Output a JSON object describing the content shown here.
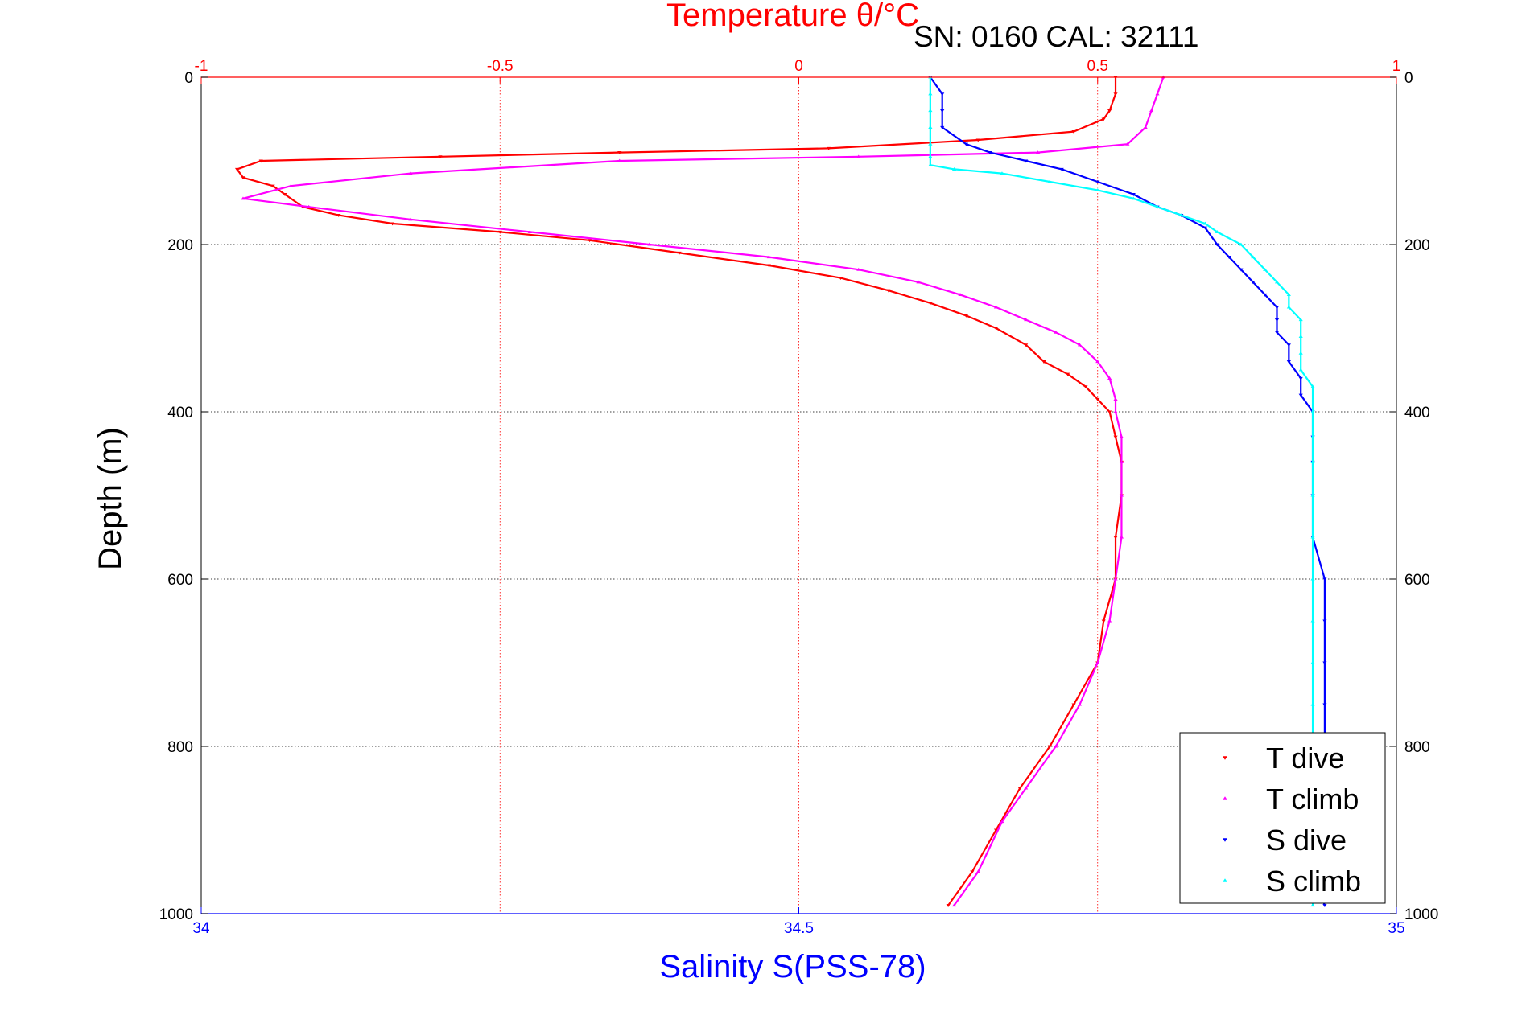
{
  "chart_data": {
    "type": "scatter",
    "title_top": "Temperature θ/°C",
    "annotation": "SN: 0160  CAL: 32111",
    "xlabel_bottom": "Salinity S(PSS-78)",
    "ylabel": "Depth (m)",
    "x_top": {
      "range": [
        -1,
        1
      ],
      "ticks": [
        "-1",
        "-0.5",
        "0",
        "0.5",
        "1"
      ],
      "color": "#ff0000"
    },
    "x_bottom": {
      "range": [
        34,
        35
      ],
      "ticks": [
        "34",
        "34.5",
        "35"
      ],
      "color": "#0000ff"
    },
    "y": {
      "range": [
        0,
        1000
      ],
      "reversed": true,
      "ticks": [
        "0",
        "200",
        "400",
        "600",
        "800",
        "1000"
      ]
    },
    "grid": true,
    "legend": {
      "placement": "bottom-right"
    },
    "series": [
      {
        "name": "T dive",
        "axis": "temperature",
        "color": "#ff0000",
        "marker": "triangle-down",
        "points": [
          [
            0.53,
            0
          ],
          [
            0.53,
            20
          ],
          [
            0.52,
            40
          ],
          [
            0.51,
            50
          ],
          [
            0.46,
            65
          ],
          [
            0.3,
            75
          ],
          [
            0.05,
            85
          ],
          [
            -0.3,
            90
          ],
          [
            -0.6,
            95
          ],
          [
            -0.9,
            100
          ],
          [
            -0.94,
            110
          ],
          [
            -0.93,
            120
          ],
          [
            -0.88,
            130
          ],
          [
            -0.86,
            140
          ],
          [
            -0.83,
            155
          ],
          [
            -0.77,
            165
          ],
          [
            -0.68,
            175
          ],
          [
            -0.5,
            185
          ],
          [
            -0.35,
            195
          ],
          [
            -0.2,
            210
          ],
          [
            -0.05,
            225
          ],
          [
            0.07,
            240
          ],
          [
            0.15,
            255
          ],
          [
            0.22,
            270
          ],
          [
            0.28,
            285
          ],
          [
            0.33,
            300
          ],
          [
            0.38,
            320
          ],
          [
            0.41,
            340
          ],
          [
            0.45,
            355
          ],
          [
            0.48,
            370
          ],
          [
            0.5,
            385
          ],
          [
            0.52,
            400
          ],
          [
            0.53,
            430
          ],
          [
            0.54,
            460
          ],
          [
            0.54,
            500
          ],
          [
            0.53,
            550
          ],
          [
            0.53,
            600
          ],
          [
            0.51,
            650
          ],
          [
            0.5,
            700
          ],
          [
            0.46,
            750
          ],
          [
            0.42,
            800
          ],
          [
            0.37,
            850
          ],
          [
            0.33,
            900
          ],
          [
            0.29,
            950
          ],
          [
            0.25,
            990
          ]
        ]
      },
      {
        "name": "T climb",
        "axis": "temperature",
        "color": "#ff00ff",
        "marker": "triangle-up",
        "points": [
          [
            0.61,
            0
          ],
          [
            0.6,
            20
          ],
          [
            0.59,
            40
          ],
          [
            0.58,
            60
          ],
          [
            0.55,
            80
          ],
          [
            0.4,
            90
          ],
          [
            0.1,
            95
          ],
          [
            -0.3,
            100
          ],
          [
            -0.65,
            115
          ],
          [
            -0.85,
            130
          ],
          [
            -0.93,
            145
          ],
          [
            -0.82,
            155
          ],
          [
            -0.65,
            170
          ],
          [
            -0.45,
            185
          ],
          [
            -0.25,
            200
          ],
          [
            -0.05,
            215
          ],
          [
            0.1,
            230
          ],
          [
            0.2,
            245
          ],
          [
            0.27,
            260
          ],
          [
            0.33,
            275
          ],
          [
            0.38,
            290
          ],
          [
            0.43,
            305
          ],
          [
            0.47,
            320
          ],
          [
            0.5,
            340
          ],
          [
            0.52,
            360
          ],
          [
            0.53,
            385
          ],
          [
            0.53,
            400
          ],
          [
            0.54,
            430
          ],
          [
            0.54,
            460
          ],
          [
            0.54,
            500
          ],
          [
            0.54,
            550
          ],
          [
            0.53,
            600
          ],
          [
            0.52,
            650
          ],
          [
            0.5,
            700
          ],
          [
            0.47,
            750
          ],
          [
            0.43,
            800
          ],
          [
            0.38,
            850
          ],
          [
            0.34,
            890
          ],
          [
            0.3,
            950
          ],
          [
            0.26,
            990
          ]
        ]
      },
      {
        "name": "S dive",
        "axis": "salinity",
        "color": "#0000ff",
        "marker": "triangle-down",
        "points": [
          [
            34.61,
            0
          ],
          [
            34.62,
            20
          ],
          [
            34.62,
            40
          ],
          [
            34.62,
            60
          ],
          [
            34.64,
            80
          ],
          [
            34.66,
            90
          ],
          [
            34.69,
            100
          ],
          [
            34.72,
            110
          ],
          [
            34.75,
            125
          ],
          [
            34.78,
            140
          ],
          [
            34.8,
            155
          ],
          [
            34.82,
            165
          ],
          [
            34.84,
            180
          ],
          [
            34.85,
            200
          ],
          [
            34.86,
            215
          ],
          [
            34.87,
            230
          ],
          [
            34.88,
            245
          ],
          [
            34.89,
            260
          ],
          [
            34.9,
            275
          ],
          [
            34.9,
            290
          ],
          [
            34.9,
            305
          ],
          [
            34.91,
            320
          ],
          [
            34.91,
            340
          ],
          [
            34.92,
            360
          ],
          [
            34.92,
            380
          ],
          [
            34.93,
            400
          ],
          [
            34.93,
            430
          ],
          [
            34.93,
            460
          ],
          [
            34.93,
            500
          ],
          [
            34.93,
            550
          ],
          [
            34.94,
            600
          ],
          [
            34.94,
            650
          ],
          [
            34.94,
            700
          ],
          [
            34.94,
            750
          ],
          [
            34.94,
            800
          ],
          [
            34.94,
            850
          ],
          [
            34.94,
            900
          ],
          [
            34.93,
            950
          ],
          [
            34.94,
            990
          ]
        ]
      },
      {
        "name": "S climb",
        "axis": "salinity",
        "color": "#00ffff",
        "marker": "triangle-up",
        "points": [
          [
            34.61,
            0
          ],
          [
            34.61,
            20
          ],
          [
            34.61,
            40
          ],
          [
            34.61,
            60
          ],
          [
            34.61,
            80
          ],
          [
            34.61,
            95
          ],
          [
            34.61,
            105
          ],
          [
            34.63,
            110
          ],
          [
            34.67,
            115
          ],
          [
            34.71,
            125
          ],
          [
            34.75,
            135
          ],
          [
            34.78,
            145
          ],
          [
            34.8,
            155
          ],
          [
            34.82,
            165
          ],
          [
            34.84,
            175
          ],
          [
            34.85,
            185
          ],
          [
            34.87,
            200
          ],
          [
            34.88,
            215
          ],
          [
            34.89,
            230
          ],
          [
            34.9,
            245
          ],
          [
            34.91,
            260
          ],
          [
            34.91,
            275
          ],
          [
            34.92,
            290
          ],
          [
            34.92,
            310
          ],
          [
            34.92,
            330
          ],
          [
            34.92,
            350
          ],
          [
            34.93,
            370
          ],
          [
            34.93,
            400
          ],
          [
            34.93,
            430
          ],
          [
            34.93,
            460
          ],
          [
            34.93,
            500
          ],
          [
            34.93,
            550
          ],
          [
            34.93,
            600
          ],
          [
            34.93,
            650
          ],
          [
            34.93,
            700
          ],
          [
            34.93,
            750
          ],
          [
            34.93,
            800
          ],
          [
            34.93,
            850
          ],
          [
            34.93,
            900
          ],
          [
            34.93,
            950
          ],
          [
            34.93,
            990
          ]
        ]
      }
    ]
  }
}
